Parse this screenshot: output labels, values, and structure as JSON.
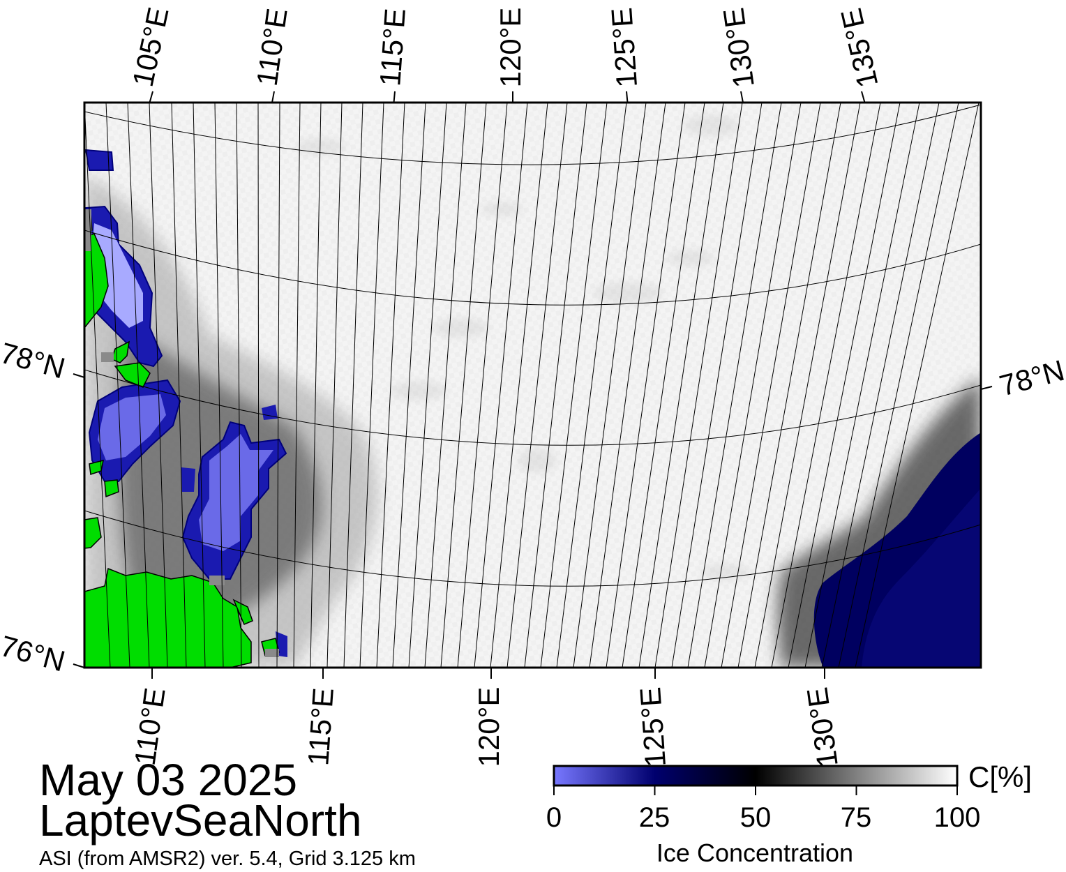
{
  "map": {
    "title_date": "May 03 2025",
    "region_name": "LaptevSeaNorth",
    "source_note": "ASI (from AMSR2) ver. 5.4,  Grid 3.125 km",
    "top_lon_labels": [
      "105°E",
      "110°E",
      "115°E",
      "120°E",
      "125°E",
      "130°E",
      "135°E"
    ],
    "bottom_lon_labels": [
      "110°E",
      "115°E",
      "120°E",
      "125°E",
      "130°E"
    ],
    "left_lat_labels": [
      "78°N",
      "76°N"
    ],
    "right_lat_labels": [
      "78°N"
    ],
    "colors": {
      "land": "#00dd00",
      "coast_gray": "#8a8a8a",
      "open_water_light": "#a8aaff",
      "low_ice": "#6a6ae8",
      "mid_low_ice": "#1a1ab0",
      "dark_navy": "#000060",
      "ice_full": "#ffffff"
    }
  },
  "colorbar": {
    "title": "Ice Concentration",
    "unit": "C[%]",
    "ticks": [
      "0",
      "25",
      "50",
      "75",
      "100"
    ],
    "stops": [
      "#7878ff",
      "#00006e",
      "#000000",
      "#808080",
      "#ffffff"
    ]
  }
}
